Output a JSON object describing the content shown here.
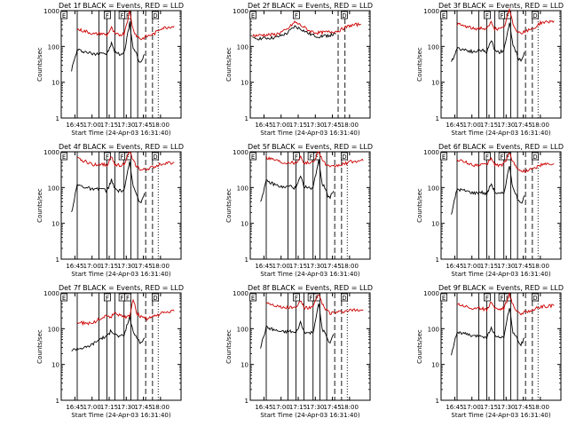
{
  "chart_data": [
    {
      "type": "line",
      "title": "Det 1f BLACK = Events, RED = LLD",
      "xlabel": "Start Time (24-Apr-03 16:31:40)",
      "ylabel": "Counts/sec",
      "y_scale": "log",
      "ylim": [
        1,
        1000
      ],
      "xlim": [
        "16:33",
        "18:18"
      ],
      "x_ticks": [
        "16:45",
        "17:00",
        "17:15",
        "17:30",
        "17:45",
        "18:00"
      ],
      "y_ticks": [
        "1",
        "10",
        "100",
        "1000"
      ],
      "markers": [
        "E",
        "F",
        "F",
        "F",
        "D"
      ],
      "series": [
        {
          "color": "#000000",
          "x": [
            "16:42",
            "16:47",
            "16:55",
            "17:02",
            "17:08",
            "17:13",
            "17:17",
            "17:20",
            "17:24",
            "17:28",
            "17:33",
            "17:36",
            "17:39",
            "17:41",
            "17:43",
            "17:46"
          ],
          "values": [
            22,
            80,
            70,
            60,
            70,
            60,
            120,
            70,
            60,
            65,
            450,
            90,
            60,
            40,
            35,
            60
          ]
        },
        {
          "color": "#cc0000",
          "x": [
            "16:47",
            "16:55",
            "17:02",
            "17:08",
            "17:13",
            "17:17",
            "17:20",
            "17:24",
            "17:28",
            "17:33",
            "17:36",
            "17:39",
            "17:43",
            "17:48",
            "17:55",
            "18:00",
            "18:05",
            "18:12"
          ],
          "values": [
            300,
            260,
            220,
            230,
            210,
            330,
            220,
            210,
            230,
            950,
            300,
            200,
            160,
            190,
            230,
            320,
            340,
            370
          ]
        }
      ]
    },
    {
      "type": "line",
      "title": "Det 2f BLACK = Events, RED = LLD",
      "xlabel": "Start Time (24-Apr-03 16:31:40)",
      "ylabel": "Counts/sec",
      "y_scale": "log",
      "ylim": [
        1,
        1000
      ],
      "xlim": [
        "16:33",
        "18:18"
      ],
      "x_ticks": [
        "16:45",
        "17:00",
        "17:15",
        "17:30",
        "17:45",
        "18:00"
      ],
      "y_ticks": [
        "1",
        "10",
        "100",
        "1000"
      ],
      "markers": [
        "E",
        "F",
        "D"
      ],
      "series": [
        {
          "color": "#000000",
          "x": [
            "16:35",
            "16:45",
            "16:55",
            "17:05",
            "17:12",
            "17:18",
            "17:25",
            "17:32",
            "17:40",
            "17:48"
          ],
          "values": [
            165,
            170,
            175,
            230,
            360,
            300,
            220,
            190,
            200,
            220
          ]
        },
        {
          "color": "#cc0000",
          "x": [
            "16:35",
            "16:45",
            "16:55",
            "17:05",
            "17:12",
            "17:18",
            "17:25",
            "17:32",
            "17:40",
            "17:50",
            "18:00",
            "18:10"
          ],
          "values": [
            200,
            210,
            215,
            290,
            480,
            380,
            270,
            240,
            250,
            270,
            380,
            420
          ]
        }
      ]
    },
    {
      "type": "line",
      "title": "Det 3f BLACK = Events, RED = LLD",
      "xlabel": "Start Time (24-Apr-03 16:31:40)",
      "ylabel": "Counts/sec",
      "y_scale": "log",
      "ylim": [
        1,
        1000
      ],
      "xlim": [
        "16:33",
        "18:18"
      ],
      "x_ticks": [
        "16:45",
        "17:00",
        "17:15",
        "17:30",
        "17:45",
        "18:00"
      ],
      "y_ticks": [
        "1",
        "10",
        "100",
        "1000"
      ],
      "markers": [
        "E",
        "F",
        "F",
        "F",
        "D"
      ],
      "series": [
        {
          "color": "#000000",
          "x": [
            "16:42",
            "16:47",
            "16:55",
            "17:02",
            "17:08",
            "17:13",
            "17:17",
            "17:20",
            "17:24",
            "17:28",
            "17:33",
            "17:36",
            "17:39",
            "17:41",
            "17:43",
            "17:46"
          ],
          "values": [
            35,
            90,
            80,
            70,
            80,
            70,
            150,
            80,
            70,
            75,
            480,
            100,
            70,
            45,
            40,
            70
          ]
        },
        {
          "color": "#cc0000",
          "x": [
            "16:47",
            "16:55",
            "17:02",
            "17:08",
            "17:13",
            "17:17",
            "17:20",
            "17:24",
            "17:28",
            "17:33",
            "17:36",
            "17:39",
            "17:43",
            "17:48",
            "17:55",
            "18:00",
            "18:05",
            "18:12"
          ],
          "values": [
            420,
            360,
            310,
            330,
            300,
            480,
            320,
            300,
            330,
            1100,
            420,
            290,
            230,
            270,
            330,
            460,
            480,
            520
          ]
        }
      ]
    },
    {
      "type": "line",
      "title": "Det 4f BLACK = Events, RED = LLD",
      "xlabel": "Start Time (24-Apr-03 16:31:40)",
      "ylabel": "Counts/sec",
      "y_scale": "log",
      "ylim": [
        1,
        1000
      ],
      "xlim": [
        "16:33",
        "18:18"
      ],
      "x_ticks": [
        "16:45",
        "17:00",
        "17:15",
        "17:30",
        "17:45",
        "18:00"
      ],
      "y_ticks": [
        "1",
        "10",
        "100",
        "1000"
      ],
      "markers": [
        "E",
        "F",
        "F",
        "F",
        "D"
      ],
      "series": [
        {
          "color": "#000000",
          "x": [
            "16:42",
            "16:47",
            "16:55",
            "17:02",
            "17:08",
            "17:13",
            "17:17",
            "17:20",
            "17:24",
            "17:28",
            "17:33",
            "17:36",
            "17:39",
            "17:41",
            "17:43",
            "17:46"
          ],
          "values": [
            20,
            120,
            100,
            85,
            95,
            80,
            160,
            90,
            80,
            85,
            500,
            110,
            70,
            45,
            40,
            70
          ]
        },
        {
          "color": "#cc0000",
          "x": [
            "16:47",
            "16:55",
            "17:02",
            "17:08",
            "17:13",
            "17:17",
            "17:20",
            "17:24",
            "17:28",
            "17:33",
            "17:36",
            "17:39",
            "17:43",
            "17:48",
            "17:55",
            "18:00",
            "18:05",
            "18:12"
          ],
          "values": [
            650,
            520,
            430,
            460,
            420,
            700,
            450,
            420,
            460,
            1000,
            560,
            400,
            300,
            330,
            380,
            460,
            480,
            500
          ]
        }
      ]
    },
    {
      "type": "line",
      "title": "Det 5f BLACK = Events, RED = LLD",
      "xlabel": "Start Time (24-Apr-03 16:31:40)",
      "ylabel": "Counts/sec",
      "y_scale": "log",
      "ylim": [
        1,
        1000
      ],
      "xlim": [
        "16:33",
        "18:18"
      ],
      "x_ticks": [
        "16:45",
        "17:00",
        "17:15",
        "17:30",
        "17:45",
        "18:00"
      ],
      "y_ticks": [
        "1",
        "10",
        "100",
        "1000"
      ],
      "markers": [
        "E",
        "F",
        "F",
        "F",
        "D"
      ],
      "series": [
        {
          "color": "#000000",
          "x": [
            "16:42",
            "16:47",
            "16:55",
            "17:02",
            "17:08",
            "17:13",
            "17:17",
            "17:20",
            "17:24",
            "17:28",
            "17:33",
            "17:36",
            "17:39",
            "17:41",
            "17:43",
            "17:46"
          ],
          "values": [
            40,
            150,
            120,
            100,
            110,
            95,
            200,
            110,
            95,
            100,
            600,
            130,
            90,
            60,
            55,
            80
          ]
        },
        {
          "color": "#cc0000",
          "x": [
            "16:47",
            "16:55",
            "17:02",
            "17:08",
            "17:13",
            "17:17",
            "17:20",
            "17:24",
            "17:28",
            "17:33",
            "17:36",
            "17:39",
            "17:43",
            "17:48",
            "17:55",
            "18:00",
            "18:05",
            "18:12"
          ],
          "values": [
            700,
            600,
            500,
            520,
            480,
            750,
            500,
            480,
            520,
            1050,
            620,
            450,
            360,
            400,
            450,
            520,
            540,
            560
          ]
        }
      ]
    },
    {
      "type": "line",
      "title": "Det 6f BLACK = Events, RED = LLD",
      "xlabel": "Start Time (24-Apr-03 16:31:40)",
      "ylabel": "Counts/sec",
      "y_scale": "log",
      "ylim": [
        1,
        1000
      ],
      "xlim": [
        "16:33",
        "18:18"
      ],
      "x_ticks": [
        "16:45",
        "17:00",
        "17:15",
        "17:30",
        "17:45",
        "18:00"
      ],
      "y_ticks": [
        "1",
        "10",
        "100",
        "1000"
      ],
      "markers": [
        "E",
        "F",
        "F",
        "F",
        "D"
      ],
      "series": [
        {
          "color": "#000000",
          "x": [
            "16:42",
            "16:47",
            "16:55",
            "17:02",
            "17:08",
            "17:13",
            "17:17",
            "17:20",
            "17:24",
            "17:28",
            "17:33",
            "17:36",
            "17:39",
            "17:41",
            "17:43",
            "17:46"
          ],
          "values": [
            18,
            90,
            80,
            70,
            75,
            65,
            130,
            75,
            65,
            70,
            420,
            90,
            60,
            40,
            35,
            60
          ]
        },
        {
          "color": "#cc0000",
          "x": [
            "16:47",
            "16:55",
            "17:02",
            "17:08",
            "17:13",
            "17:17",
            "17:20",
            "17:24",
            "17:28",
            "17:33",
            "17:36",
            "17:39",
            "17:43",
            "17:48",
            "17:55",
            "18:00",
            "18:05",
            "18:12"
          ],
          "values": [
            600,
            500,
            420,
            450,
            420,
            680,
            440,
            420,
            450,
            950,
            520,
            380,
            280,
            300,
            340,
            420,
            440,
            460
          ]
        }
      ]
    },
    {
      "type": "line",
      "title": "Det 7f BLACK = Events, RED = LLD",
      "xlabel": "Start Time (24-Apr-03 16:31:40)",
      "ylabel": "Counts/sec",
      "y_scale": "log",
      "ylim": [
        1,
        1000
      ],
      "xlim": [
        "16:33",
        "18:18"
      ],
      "x_ticks": [
        "16:45",
        "17:00",
        "17:15",
        "17:30",
        "17:45",
        "18:00"
      ],
      "y_ticks": [
        "1",
        "10",
        "100",
        "1000"
      ],
      "markers": [
        "E",
        "F",
        "F",
        "F",
        "D"
      ],
      "series": [
        {
          "color": "#000000",
          "x": [
            "16:42",
            "16:47",
            "16:55",
            "17:02",
            "17:08",
            "17:13",
            "17:17",
            "17:20",
            "17:24",
            "17:28",
            "17:33",
            "17:36",
            "17:39",
            "17:41",
            "17:43",
            "17:46"
          ],
          "values": [
            25,
            28,
            30,
            40,
            55,
            60,
            90,
            70,
            60,
            65,
            220,
            80,
            60,
            45,
            40,
            55
          ]
        },
        {
          "color": "#cc0000",
          "x": [
            "16:47",
            "16:55",
            "17:02",
            "17:08",
            "17:13",
            "17:17",
            "17:20",
            "17:24",
            "17:28",
            "17:33",
            "17:36",
            "17:39",
            "17:43",
            "17:48",
            "17:55",
            "18:00",
            "18:05",
            "18:12"
          ],
          "values": [
            150,
            140,
            150,
            200,
            230,
            210,
            300,
            230,
            210,
            230,
            700,
            280,
            210,
            190,
            220,
            260,
            290,
            310
          ]
        }
      ]
    },
    {
      "type": "line",
      "title": "Det 8f BLACK = Events, RED = LLD",
      "xlabel": "Start Time (24-Apr-03 16:31:40)",
      "ylabel": "Counts/sec",
      "y_scale": "log",
      "ylim": [
        1,
        1000
      ],
      "xlim": [
        "16:33",
        "18:18"
      ],
      "x_ticks": [
        "16:45",
        "17:00",
        "17:15",
        "17:30",
        "17:45",
        "18:00"
      ],
      "y_ticks": [
        "1",
        "10",
        "100",
        "1000"
      ],
      "markers": [
        "E",
        "F",
        "F",
        "F",
        "D"
      ],
      "series": [
        {
          "color": "#000000",
          "x": [
            "16:42",
            "16:47",
            "16:55",
            "17:02",
            "17:08",
            "17:13",
            "17:17",
            "17:20",
            "17:24",
            "17:28",
            "17:33",
            "17:36",
            "17:39",
            "17:41",
            "17:43",
            "17:46"
          ],
          "values": [
            30,
            110,
            90,
            80,
            85,
            75,
            150,
            85,
            75,
            80,
            500,
            100,
            70,
            45,
            40,
            70
          ]
        },
        {
          "color": "#cc0000",
          "x": [
            "16:47",
            "16:55",
            "17:02",
            "17:08",
            "17:13",
            "17:17",
            "17:20",
            "17:24",
            "17:28",
            "17:33",
            "17:36",
            "17:39",
            "17:43",
            "17:48",
            "17:55",
            "18:00",
            "18:05",
            "18:12"
          ],
          "values": [
            550,
            450,
            380,
            400,
            370,
            620,
            400,
            370,
            400,
            950,
            480,
            350,
            270,
            280,
            300,
            320,
            330,
            340
          ]
        }
      ]
    },
    {
      "type": "line",
      "title": "Det 9f BLACK = Events, RED = LLD",
      "xlabel": "Start Time (24-Apr-03 16:31:40)",
      "ylabel": "Counts/sec",
      "y_scale": "log",
      "ylim": [
        1,
        1000
      ],
      "xlim": [
        "16:33",
        "18:18"
      ],
      "x_ticks": [
        "16:45",
        "17:00",
        "17:15",
        "17:30",
        "17:45",
        "18:00"
      ],
      "y_ticks": [
        "1",
        "10",
        "100",
        "1000"
      ],
      "markers": [
        "E",
        "F",
        "F",
        "F",
        "D"
      ],
      "series": [
        {
          "color": "#000000",
          "x": [
            "16:42",
            "16:47",
            "16:55",
            "17:02",
            "17:08",
            "17:13",
            "17:17",
            "17:20",
            "17:24",
            "17:28",
            "17:33",
            "17:36",
            "17:39",
            "17:41",
            "17:43",
            "17:46"
          ],
          "values": [
            20,
            80,
            70,
            60,
            65,
            55,
            110,
            65,
            55,
            60,
            400,
            80,
            55,
            38,
            35,
            55
          ]
        },
        {
          "color": "#cc0000",
          "x": [
            "16:47",
            "16:55",
            "17:02",
            "17:08",
            "17:13",
            "17:17",
            "17:20",
            "17:24",
            "17:28",
            "17:33",
            "17:36",
            "17:39",
            "17:43",
            "17:48",
            "17:55",
            "18:00",
            "18:05",
            "18:12"
          ],
          "values": [
            500,
            420,
            350,
            370,
            340,
            580,
            380,
            350,
            380,
            900,
            460,
            330,
            260,
            300,
            350,
            400,
            420,
            440
          ]
        }
      ]
    }
  ]
}
